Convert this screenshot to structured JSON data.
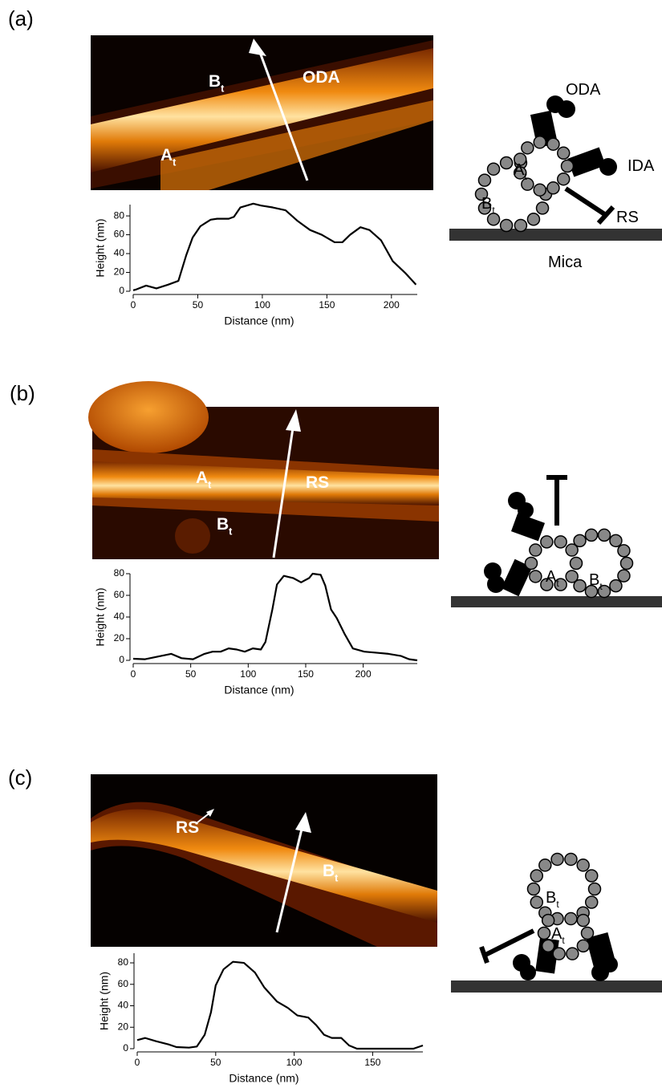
{
  "panels": [
    {
      "label": "(a)",
      "image_labels": [
        {
          "text": "B",
          "sub": "t"
        },
        {
          "text": "ODA"
        },
        {
          "text": "A",
          "sub": "t"
        }
      ],
      "diagram_labels": [
        {
          "text": "ODA"
        },
        {
          "text": "A",
          "sub": "t"
        },
        {
          "text": "IDA"
        },
        {
          "text": "B",
          "sub": "t"
        },
        {
          "text": "RS"
        },
        {
          "text": "Mica"
        }
      ]
    },
    {
      "label": "(b)",
      "image_labels": [
        {
          "text": "A",
          "sub": "t"
        },
        {
          "text": "RS"
        },
        {
          "text": "B",
          "sub": "t"
        }
      ],
      "diagram_labels": [
        {
          "text": "A",
          "sub": "t"
        },
        {
          "text": "B",
          "sub": "t"
        }
      ]
    },
    {
      "label": "(c)",
      "image_labels": [
        {
          "text": "RS"
        },
        {
          "text": "B",
          "sub": "t"
        }
      ],
      "diagram_labels": [
        {
          "text": "B",
          "sub": "t"
        },
        {
          "text": "A",
          "sub": "t"
        }
      ]
    }
  ],
  "chart_data": [
    {
      "type": "line",
      "x_label": "Distance (nm)",
      "y_label": "Height (nm)",
      "x": [
        0,
        2.5,
        10,
        18,
        27,
        35,
        41,
        46,
        52,
        60,
        65,
        74,
        78,
        83,
        93,
        99,
        108,
        118,
        127,
        137,
        146,
        156,
        162,
        168,
        176,
        183,
        192,
        201,
        211,
        219
      ],
      "series": [
        {
          "color": "#000000",
          "values": [
            1,
            2,
            6,
            3,
            7,
            11,
            38,
            57,
            69,
            76,
            77,
            77,
            79,
            89,
            93,
            91,
            89,
            86,
            75,
            65,
            60,
            52,
            52,
            60,
            68,
            65,
            54,
            32,
            19,
            7
          ]
        }
      ],
      "xlim": [
        0,
        220
      ],
      "ylim": [
        0,
        92
      ],
      "xticks": [
        0,
        50,
        100,
        150,
        200
      ],
      "yticks": [
        0,
        20,
        40,
        60,
        80
      ]
    },
    {
      "type": "line",
      "x_label": "Distance (nm)",
      "y_label": "Height (nm)",
      "x": [
        0,
        10,
        24,
        33,
        42,
        52,
        62,
        69,
        76,
        83,
        90,
        97,
        104,
        111,
        115,
        121,
        125,
        131,
        139,
        146,
        153,
        156,
        163,
        167,
        172,
        177,
        184,
        191,
        201,
        212,
        222,
        233,
        240,
        247
      ],
      "series": [
        {
          "color": "#000000",
          "values": [
            1.5,
            1,
            4,
            6,
            2,
            1,
            6,
            8,
            8,
            11,
            10,
            8,
            11,
            10,
            17,
            47,
            70,
            78,
            76,
            72,
            76,
            80,
            79,
            69,
            47,
            39,
            24,
            11,
            8,
            7,
            6,
            4,
            1,
            0
          ]
        }
      ],
      "xlim": [
        0,
        247
      ],
      "ylim": [
        0,
        80
      ],
      "xticks": [
        0,
        50,
        100,
        150,
        200
      ],
      "yticks": [
        0,
        20,
        40,
        60,
        80
      ]
    },
    {
      "type": "line",
      "x_label": "Distance (nm)",
      "y_label": "Height (nm)",
      "x": [
        0,
        5,
        12,
        20,
        25,
        33,
        38,
        43,
        47,
        50,
        55,
        61,
        68,
        75,
        81,
        89,
        96,
        102,
        109,
        114,
        119,
        124,
        130,
        135,
        140,
        158,
        168,
        176,
        182
      ],
      "series": [
        {
          "color": "#000000",
          "values": [
            8,
            10,
            7,
            4,
            1.5,
            1,
            2,
            13,
            34,
            59,
            74,
            81,
            80,
            71,
            57,
            44,
            38,
            31,
            29,
            22,
            13,
            10,
            10,
            3,
            0,
            0,
            0,
            0,
            3
          ]
        }
      ],
      "xlim": [
        0,
        182
      ],
      "ylim": [
        0,
        89
      ],
      "xticks": [
        0,
        50,
        100,
        150
      ],
      "yticks": [
        0,
        20,
        40,
        60,
        80
      ]
    }
  ]
}
